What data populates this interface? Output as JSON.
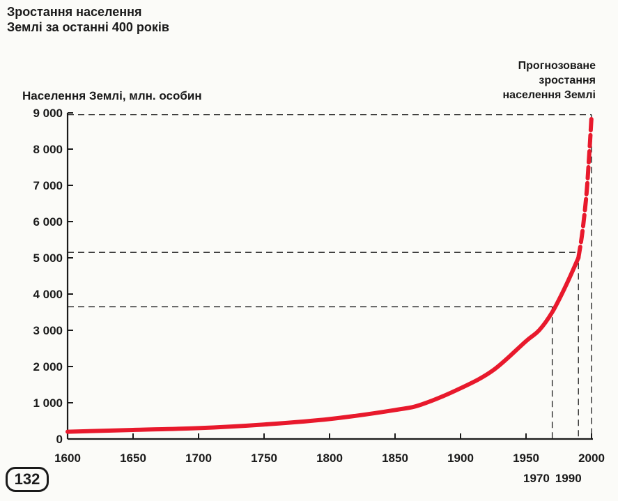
{
  "title_lines": [
    "Зростання населення",
    "Землі за останні 400 років"
  ],
  "forecast_lines": [
    "Прогнозоване",
    "зростання",
    "населення Землі"
  ],
  "page_number": "132",
  "colors": {
    "curve": "#e8192c",
    "ink": "#1a1a1a"
  },
  "chart_data": {
    "type": "line",
    "title": "Зростання населення Землі за останні 400 років",
    "ylabel": "Населення Землі, млн. особин",
    "xlabel": "",
    "xlim": [
      1600,
      2000
    ],
    "ylim": [
      0,
      9000
    ],
    "x_ticks": [
      1600,
      1650,
      1700,
      1750,
      1800,
      1850,
      1900,
      1950,
      2000
    ],
    "y_ticks": [
      0,
      1000,
      2000,
      3000,
      4000,
      5000,
      6000,
      7000,
      8000,
      9000
    ],
    "y_tick_labels": [
      "0",
      "1 000",
      "2 000",
      "3 000",
      "4 000",
      "5 000",
      "6 000",
      "7 000",
      "8 000",
      "9 000"
    ],
    "extra_x_labels": [
      "1970",
      "1990"
    ],
    "reference_lines": [
      {
        "x": 1970,
        "y": 3650
      },
      {
        "x": 1990,
        "y": 5150
      },
      {
        "x": 2000,
        "y": 8950
      }
    ],
    "series": [
      {
        "style": "solid",
        "x": [
          1600,
          1650,
          1700,
          1750,
          1800,
          1850,
          1870,
          1900,
          1925,
          1950,
          1960,
          1970,
          1980,
          1990
        ],
        "y": [
          200,
          250,
          300,
          400,
          550,
          800,
          950,
          1400,
          1900,
          2700,
          3000,
          3500,
          4200,
          5000
        ]
      },
      {
        "style": "dashed",
        "x": [
          1990,
          1993,
          1996,
          1998,
          2000
        ],
        "y": [
          5000,
          5700,
          6700,
          7700,
          8900
        ]
      }
    ],
    "grid": false
  }
}
